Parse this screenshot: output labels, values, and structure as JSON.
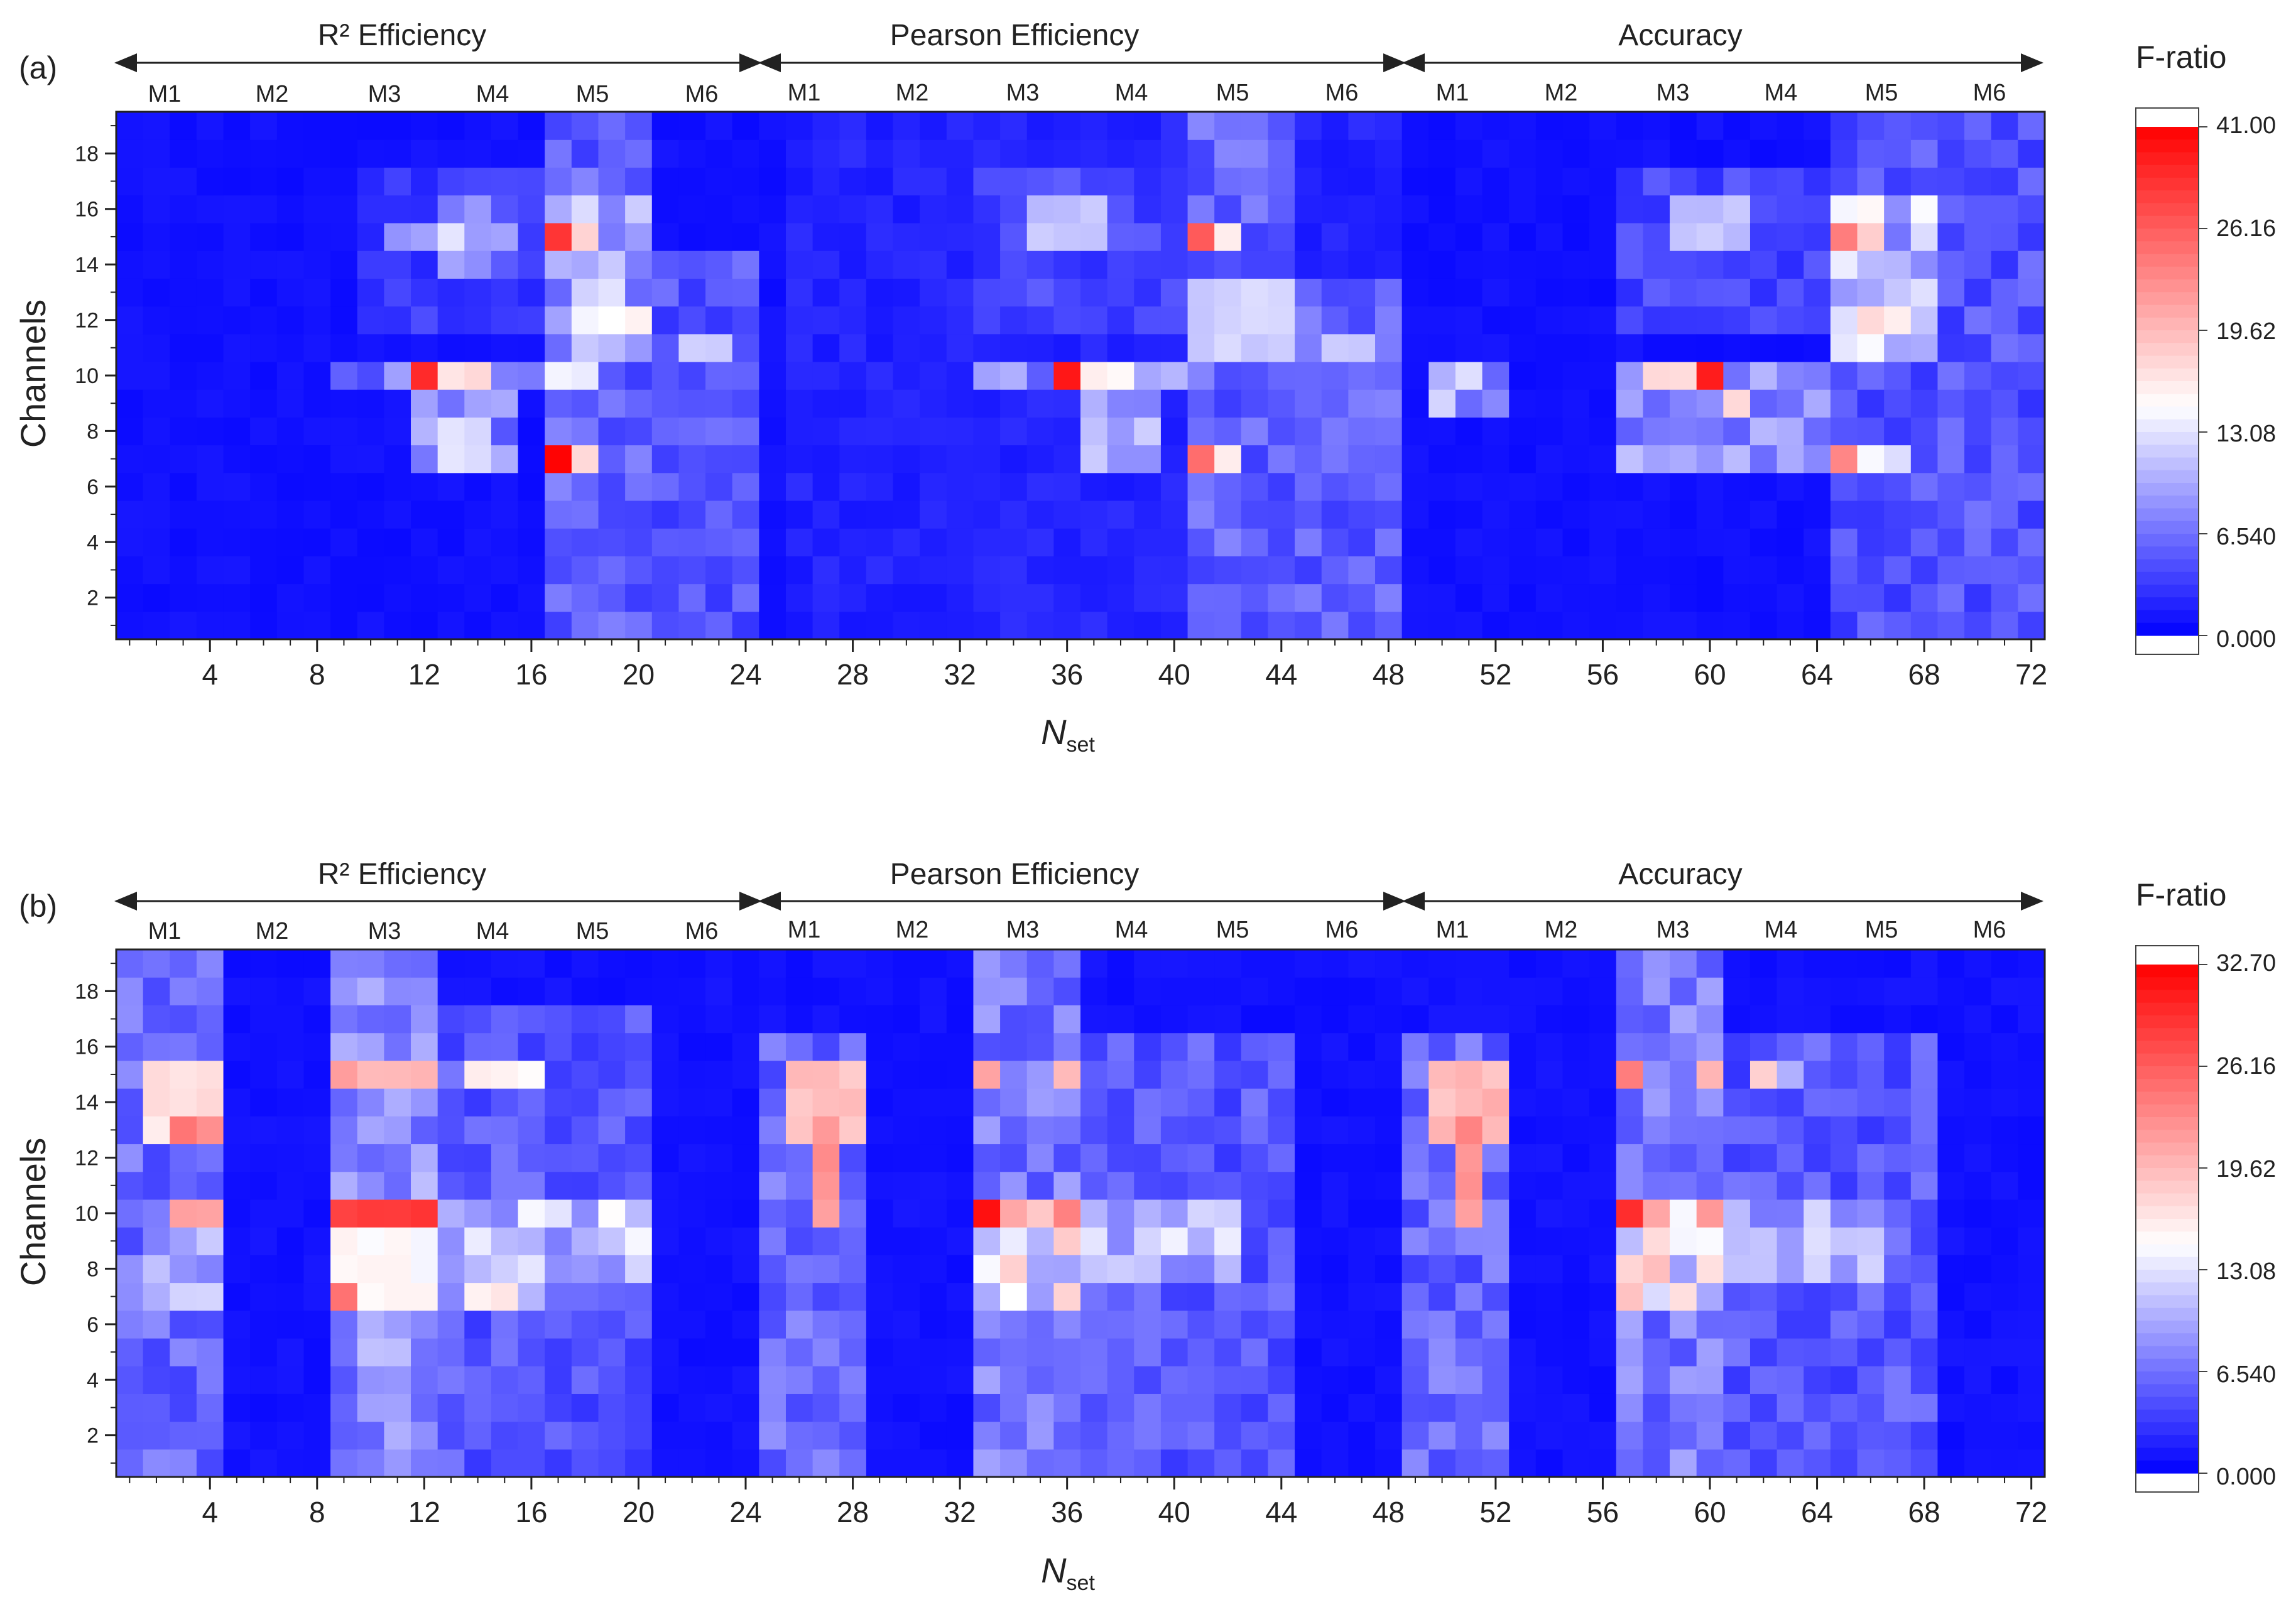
{
  "figure": {
    "panels": [
      {
        "tag": "(a)",
        "groups": [
          "R² Efficiency",
          "Pearson Efficiency",
          "Accuracy"
        ],
        "models": [
          "M1",
          "M2",
          "M3",
          "M4",
          "M5",
          "M6"
        ],
        "xlabel_main": "N",
        "xlabel_sub": "set",
        "ylabel": "Channels",
        "colorbar": {
          "label": "F-ratio",
          "ticks": [
            "41.00",
            "26.16",
            "19.62",
            "13.08",
            "6.540",
            "0.000"
          ]
        }
      },
      {
        "tag": "(b)",
        "groups": [
          "R² Efficiency",
          "Pearson Efficiency",
          "Accuracy"
        ],
        "models": [
          "M1",
          "M2",
          "M3",
          "M4",
          "M5",
          "M6"
        ],
        "xlabel_main": "N",
        "xlabel_sub": "set",
        "ylabel": "Channels",
        "colorbar": {
          "label": "F-ratio",
          "ticks": [
            "32.70",
            "26.16",
            "19.62",
            "13.08",
            "6.540",
            "0.000"
          ]
        }
      }
    ]
  },
  "chart_data": [
    {
      "type": "heatmap",
      "panel": "(a)",
      "xlabel": "Nset",
      "ylabel": "Channels",
      "xlim": [
        0.5,
        72.5
      ],
      "ylim": [
        0.5,
        19.5
      ],
      "xticks": [
        4,
        8,
        12,
        16,
        20,
        24,
        28,
        32,
        36,
        40,
        44,
        48,
        52,
        56,
        60,
        64,
        68,
        72
      ],
      "yticks": [
        2,
        4,
        6,
        8,
        10,
        12,
        14,
        16,
        18
      ],
      "colorbar": {
        "min": 0,
        "max": 41,
        "ticks": [
          0,
          6.54,
          13.08,
          19.62,
          26.16,
          41.0
        ],
        "colors": [
          "#0000ff",
          "#ffffff",
          "#ff0000"
        ]
      },
      "hotspots": [
        {
          "x": [
            1,
            24
          ],
          "y": [
            1,
            19
          ],
          "v": 1.2
        },
        {
          "x": [
            25,
            48
          ],
          "y": [
            1,
            19
          ],
          "v": 1.2
        },
        {
          "x": [
            49,
            72
          ],
          "y": [
            1,
            19
          ],
          "v": 1.2
        },
        {
          "x": [
            10,
            16
          ],
          "y": [
            12,
            17
          ],
          "v": 4
        },
        {
          "x": [
            13,
            15
          ],
          "y": [
            14,
            16
          ],
          "v": 9
        },
        {
          "x": [
            11,
            13
          ],
          "y": [
            15,
            15
          ],
          "v": 14
        },
        {
          "x": [
            9,
            16
          ],
          "y": [
            10,
            10
          ],
          "v": 9
        },
        {
          "x": [
            12,
            12
          ],
          "y": [
            10,
            10
          ],
          "v": 40
        },
        {
          "x": [
            13,
            14
          ],
          "y": [
            10,
            10
          ],
          "v": 22
        },
        {
          "x": [
            12,
            15
          ],
          "y": [
            7,
            9
          ],
          "v": 10
        },
        {
          "x": [
            13,
            14
          ],
          "y": [
            7,
            8
          ],
          "v": 17
        },
        {
          "x": [
            17,
            20
          ],
          "y": [
            1,
            19
          ],
          "v": 7
        },
        {
          "x": [
            17,
            20
          ],
          "y": [
            11,
            16
          ],
          "v": 12
        },
        {
          "x": [
            17,
            17
          ],
          "y": [
            15,
            15
          ],
          "v": 41
        },
        {
          "x": [
            18,
            18
          ],
          "y": [
            15,
            15
          ],
          "v": 23
        },
        {
          "x": [
            18,
            20
          ],
          "y": [
            12,
            12
          ],
          "v": 20
        },
        {
          "x": [
            17,
            18
          ],
          "y": [
            10,
            10
          ],
          "v": 19
        },
        {
          "x": [
            17,
            17
          ],
          "y": [
            7,
            7
          ],
          "v": 41
        },
        {
          "x": [
            18,
            18
          ],
          "y": [
            7,
            7
          ],
          "v": 22
        },
        {
          "x": [
            21,
            24
          ],
          "y": [
            1,
            14
          ],
          "v": 6
        },
        {
          "x": [
            22,
            23
          ],
          "y": [
            11,
            11
          ],
          "v": 16
        },
        {
          "x": [
            26,
            48
          ],
          "y": [
            1,
            19
          ],
          "v": 2.5
        },
        {
          "x": [
            33,
            40
          ],
          "y": [
            12,
            17
          ],
          "v": 5
        },
        {
          "x": [
            35,
            37
          ],
          "y": [
            15,
            16
          ],
          "v": 15
        },
        {
          "x": [
            33,
            40
          ],
          "y": [
            10,
            10
          ],
          "v": 10
        },
        {
          "x": [
            36,
            36
          ],
          "y": [
            10,
            10
          ],
          "v": 40
        },
        {
          "x": [
            37,
            38
          ],
          "y": [
            10,
            10
          ],
          "v": 20
        },
        {
          "x": [
            37,
            39
          ],
          "y": [
            7,
            9
          ],
          "v": 12
        },
        {
          "x": [
            41,
            44
          ],
          "y": [
            1,
            19
          ],
          "v": 7
        },
        {
          "x": [
            41,
            44
          ],
          "y": [
            11,
            13
          ],
          "v": 16
        },
        {
          "x": [
            41,
            41
          ],
          "y": [
            15,
            15
          ],
          "v": 34
        },
        {
          "x": [
            42,
            42
          ],
          "y": [
            15,
            15
          ],
          "v": 21
        },
        {
          "x": [
            41,
            41
          ],
          "y": [
            7,
            7
          ],
          "v": 34
        },
        {
          "x": [
            42,
            42
          ],
          "y": [
            7,
            7
          ],
          "v": 22
        },
        {
          "x": [
            45,
            48
          ],
          "y": [
            1,
            13
          ],
          "v": 7
        },
        {
          "x": [
            46,
            47
          ],
          "y": [
            11,
            11
          ],
          "v": 15
        },
        {
          "x": [
            57,
            64
          ],
          "y": [
            12,
            17
          ],
          "v": 5
        },
        {
          "x": [
            59,
            61
          ],
          "y": [
            15,
            16
          ],
          "v": 15
        },
        {
          "x": [
            57,
            64
          ],
          "y": [
            10,
            10
          ],
          "v": 12
        },
        {
          "x": [
            60,
            60
          ],
          "y": [
            10,
            10
          ],
          "v": 40
        },
        {
          "x": [
            58,
            59
          ],
          "y": [
            10,
            10
          ],
          "v": 22
        },
        {
          "x": [
            61,
            61
          ],
          "y": [
            9,
            9
          ],
          "v": 22
        },
        {
          "x": [
            57,
            64
          ],
          "y": [
            7,
            9
          ],
          "v": 10
        },
        {
          "x": [
            65,
            72
          ],
          "y": [
            1,
            19
          ],
          "v": 6
        },
        {
          "x": [
            65,
            68
          ],
          "y": [
            11,
            16
          ],
          "v": 14
        },
        {
          "x": [
            65,
            65
          ],
          "y": [
            15,
            15
          ],
          "v": 31
        },
        {
          "x": [
            66,
            66
          ],
          "y": [
            15,
            15
          ],
          "v": 23
        },
        {
          "x": [
            66,
            67
          ],
          "y": [
            12,
            12
          ],
          "v": 22
        },
        {
          "x": [
            65,
            65
          ],
          "y": [
            7,
            7
          ],
          "v": 31
        },
        {
          "x": [
            66,
            67
          ],
          "y": [
            7,
            7
          ],
          "v": 18
        },
        {
          "x": [
            50,
            52
          ],
          "y": [
            9,
            10
          ],
          "v": 12
        }
      ]
    },
    {
      "type": "heatmap",
      "panel": "(b)",
      "xlabel": "Nset",
      "ylabel": "Channels",
      "xlim": [
        0.5,
        72.5
      ],
      "ylim": [
        0.5,
        19.5
      ],
      "xticks": [
        4,
        8,
        12,
        16,
        20,
        24,
        28,
        32,
        36,
        40,
        44,
        48,
        52,
        56,
        60,
        64,
        68,
        72
      ],
      "yticks": [
        2,
        4,
        6,
        8,
        10,
        12,
        14,
        16,
        18
      ],
      "colorbar": {
        "min": 0,
        "max": 32.7,
        "ticks": [
          0,
          6.54,
          13.08,
          19.62,
          26.16,
          32.7
        ],
        "colors": [
          "#0000ff",
          "#ffffff",
          "#ff0000"
        ]
      },
      "hotspots": [
        {
          "x": [
            1,
            72
          ],
          "y": [
            1,
            19
          ],
          "v": 1.0
        },
        {
          "x": [
            1,
            4
          ],
          "y": [
            1,
            19
          ],
          "v": 6
        },
        {
          "x": [
            2,
            4
          ],
          "y": [
            13,
            15
          ],
          "v": 18
        },
        {
          "x": [
            3,
            4
          ],
          "y": [
            13,
            13
          ],
          "v": 25
        },
        {
          "x": [
            3,
            4
          ],
          "y": [
            10,
            10
          ],
          "v": 22
        },
        {
          "x": [
            2,
            4
          ],
          "y": [
            7,
            9
          ],
          "v": 10
        },
        {
          "x": [
            9,
            12
          ],
          "y": [
            1,
            19
          ],
          "v": 8
        },
        {
          "x": [
            9,
            12
          ],
          "y": [
            15,
            15
          ],
          "v": 22
        },
        {
          "x": [
            9,
            12
          ],
          "y": [
            10,
            10
          ],
          "v": 30
        },
        {
          "x": [
            9,
            12
          ],
          "y": [
            7,
            9
          ],
          "v": 16
        },
        {
          "x": [
            9,
            9
          ],
          "y": [
            7,
            7
          ],
          "v": 25
        },
        {
          "x": [
            13,
            20
          ],
          "y": [
            1,
            17
          ],
          "v": 5
        },
        {
          "x": [
            13,
            16
          ],
          "y": [
            7,
            10
          ],
          "v": 12
        },
        {
          "x": [
            14,
            16
          ],
          "y": [
            15,
            15
          ],
          "v": 16
        },
        {
          "x": [
            14,
            15
          ],
          "y": [
            7,
            7
          ],
          "v": 17
        },
        {
          "x": [
            17,
            20
          ],
          "y": [
            8,
            10
          ],
          "v": 11
        },
        {
          "x": [
            25,
            28
          ],
          "y": [
            1,
            16
          ],
          "v": 6
        },
        {
          "x": [
            26,
            28
          ],
          "y": [
            13,
            15
          ],
          "v": 20
        },
        {
          "x": [
            27,
            27
          ],
          "y": [
            10,
            13
          ],
          "v": 24
        },
        {
          "x": [
            33,
            36
          ],
          "y": [
            1,
            19
          ],
          "v": 7
        },
        {
          "x": [
            33,
            36
          ],
          "y": [
            7,
            10
          ],
          "v": 14
        },
        {
          "x": [
            33,
            33
          ],
          "y": [
            10,
            10
          ],
          "v": 32
        },
        {
          "x": [
            34,
            34
          ],
          "y": [
            10,
            10
          ],
          "v": 22
        },
        {
          "x": [
            33,
            33
          ],
          "y": [
            15,
            15
          ],
          "v": 24
        },
        {
          "x": [
            36,
            36
          ],
          "y": [
            10,
            10
          ],
          "v": 24
        },
        {
          "x": [
            36,
            36
          ],
          "y": [
            15,
            15
          ],
          "v": 22
        },
        {
          "x": [
            37,
            44
          ],
          "y": [
            1,
            16
          ],
          "v": 5
        },
        {
          "x": [
            37,
            42
          ],
          "y": [
            8,
            10
          ],
          "v": 10
        },
        {
          "x": [
            49,
            52
          ],
          "y": [
            1,
            16
          ],
          "v": 6
        },
        {
          "x": [
            50,
            52
          ],
          "y": [
            13,
            15
          ],
          "v": 21
        },
        {
          "x": [
            51,
            51
          ],
          "y": [
            10,
            13
          ],
          "v": 24
        },
        {
          "x": [
            57,
            60
          ],
          "y": [
            1,
            19
          ],
          "v": 7
        },
        {
          "x": [
            57,
            60
          ],
          "y": [
            7,
            10
          ],
          "v": 14
        },
        {
          "x": [
            57,
            57
          ],
          "y": [
            10,
            10
          ],
          "v": 32
        },
        {
          "x": [
            58,
            58
          ],
          "y": [
            10,
            10
          ],
          "v": 23
        },
        {
          "x": [
            57,
            57
          ],
          "y": [
            15,
            15
          ],
          "v": 24
        },
        {
          "x": [
            60,
            60
          ],
          "y": [
            10,
            10
          ],
          "v": 24
        },
        {
          "x": [
            60,
            60
          ],
          "y": [
            15,
            15
          ],
          "v": 22
        },
        {
          "x": [
            61,
            68
          ],
          "y": [
            1,
            16
          ],
          "v": 5
        },
        {
          "x": [
            61,
            66
          ],
          "y": [
            8,
            10
          ],
          "v": 10
        },
        {
          "x": [
            62,
            63
          ],
          "y": [
            15,
            15
          ],
          "v": 14
        }
      ]
    }
  ]
}
